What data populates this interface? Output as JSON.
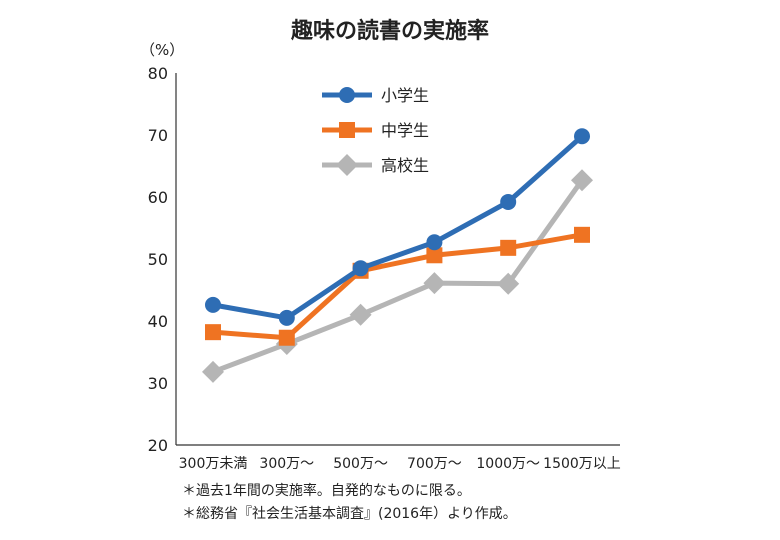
{
  "chart_data": {
    "type": "line",
    "title": "趣味の読書の実施率",
    "ylabel": "（%）",
    "xlabel": "",
    "ylim": [
      20,
      80
    ],
    "yticks": [
      20,
      30,
      40,
      50,
      60,
      70,
      80
    ],
    "grid": false,
    "legend_placement": "top-center",
    "categories": [
      "300万未満",
      "300万～",
      "500万～",
      "700万～",
      "1000万～",
      "1500万以上"
    ],
    "series": [
      {
        "name": "小学生",
        "color": "#2e6db4",
        "marker": "circle",
        "values": [
          42.6,
          40.5,
          48.5,
          52.7,
          59.2,
          69.8
        ]
      },
      {
        "name": "中学生",
        "color": "#ef7322",
        "marker": "square",
        "values": [
          38.2,
          37.3,
          48.1,
          50.6,
          51.8,
          53.9
        ]
      },
      {
        "name": "高校生",
        "color": "#b5b5b5",
        "marker": "diamond",
        "values": [
          31.8,
          36.3,
          41.0,
          46.1,
          46.0,
          62.7
        ]
      }
    ]
  },
  "notes": [
    "＊過去1年間の実施率。自発的なものに限る。",
    "＊総務省『社会生活基本調査』(2016年）より作成。"
  ]
}
